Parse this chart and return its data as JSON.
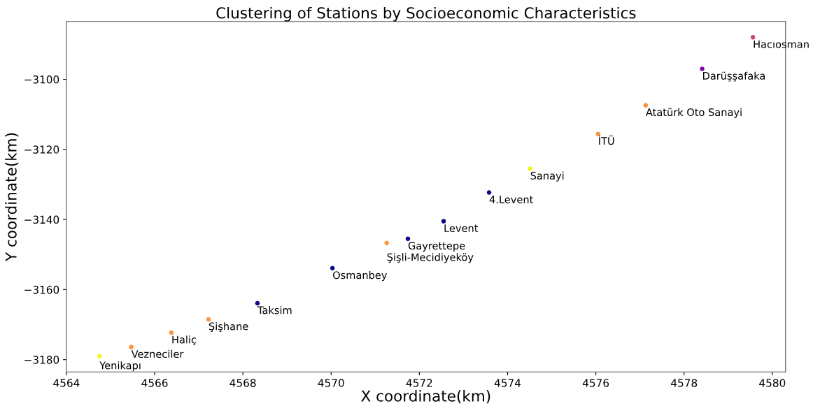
{
  "chart_data": {
    "type": "scatter",
    "title": "Clustering of Stations by Socioeconomic Characteristics",
    "xlabel": "X coordinate(km)",
    "ylabel": "Y coordinate(km)",
    "x": [
      4579.56,
      4578.41,
      4577.13,
      4576.05,
      4574.51,
      4573.58,
      4572.55,
      4571.74,
      4571.26,
      4570.03,
      4568.33,
      4567.22,
      4566.38,
      4565.47,
      4564.75
    ],
    "values": [
      -3088.0,
      -3097.0,
      -3107.4,
      -3115.6,
      -3125.5,
      -3132.3,
      -3140.5,
      -3145.5,
      -3146.7,
      -3153.9,
      -3163.9,
      -3168.5,
      -3172.3,
      -3176.4,
      -3179.0
    ],
    "colors": [
      "#cc4778",
      "#7e03a8",
      "#f89540",
      "#f89540",
      "#f0f921",
      "#0d0887",
      "#0d0887",
      "#0d0887",
      "#f89540",
      "#0d0887",
      "#0d0887",
      "#f89540",
      "#f89540",
      "#f89540",
      "#f0f921"
    ],
    "annotations": [
      {
        "text": "Hacıosman",
        "x": 4579.56,
        "y": -3088.0
      },
      {
        "text": "Darüşşafaka",
        "x": 4578.41,
        "y": -3097.0
      },
      {
        "text": "Atatürk Oto Sanayi",
        "x": 4577.13,
        "y": -3107.4
      },
      {
        "text": "İTÜ",
        "x": 4576.05,
        "y": -3115.6
      },
      {
        "text": "Sanayi",
        "x": 4574.51,
        "y": -3125.5
      },
      {
        "text": "4.Levent",
        "x": 4573.58,
        "y": -3132.3
      },
      {
        "text": "Levent",
        "x": 4572.55,
        "y": -3140.5
      },
      {
        "text": "Gayrettepe",
        "x": 4571.74,
        "y": -3145.5
      },
      {
        "text": "Şişli-Mecidiyeköy",
        "x": 4571.26,
        "y": -3146.7
      },
      {
        "text": "Osmanbey",
        "x": 4570.03,
        "y": -3153.9
      },
      {
        "text": "Taksim",
        "x": 4568.33,
        "y": -3163.9
      },
      {
        "text": "Şişhane",
        "x": 4567.22,
        "y": -3168.5
      },
      {
        "text": "Haliç",
        "x": 4566.38,
        "y": -3172.3
      },
      {
        "text": "Vezneciler",
        "x": 4565.47,
        "y": -3176.4
      },
      {
        "text": "Yenikapı",
        "x": 4564.75,
        "y": -3179.0
      }
    ],
    "xlim": [
      4564,
      4580.3
    ],
    "ylim": [
      -3183.5,
      -3083.5
    ],
    "xticks": [
      4564,
      4566,
      4568,
      4570,
      4572,
      4574,
      4576,
      4578,
      4580
    ],
    "yticks": [
      -3180,
      -3160,
      -3140,
      -3120,
      -3100
    ],
    "marker": "circle",
    "grid": false
  }
}
